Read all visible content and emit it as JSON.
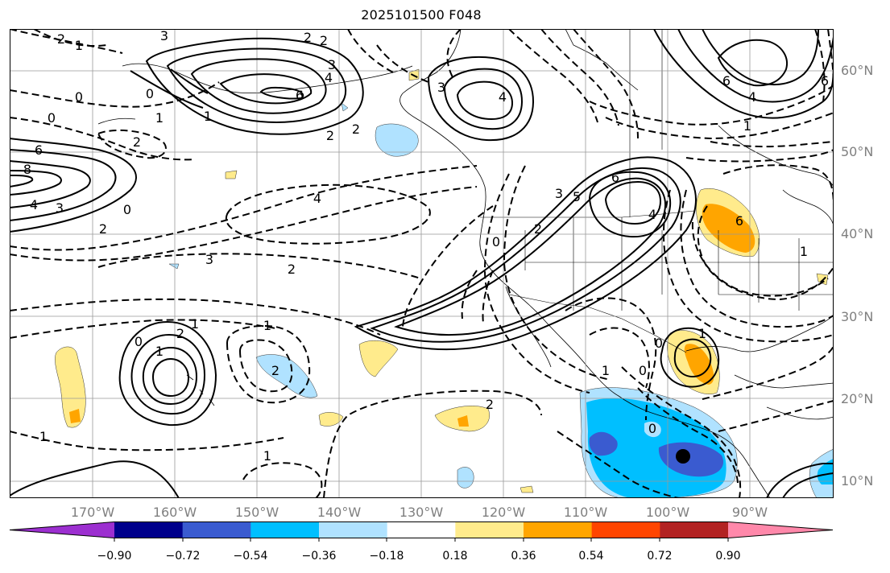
{
  "title": "2025101500 F048",
  "lat_labels": [
    "60°N",
    "50°N",
    "40°N",
    "30°N",
    "20°N",
    "10°N"
  ],
  "lon_labels": [
    "170°W",
    "160°W",
    "150°W",
    "140°W",
    "130°W",
    "120°W",
    "110°W",
    "100°W",
    "90°W"
  ],
  "contour_labels": [
    "2",
    "2",
    "1",
    "3",
    "2",
    "3",
    "6",
    "4",
    "3",
    "4",
    "6",
    "6",
    "4",
    "1",
    "0",
    "0",
    "0",
    "1",
    "2",
    "2",
    "2",
    "6",
    "8",
    "4",
    "3",
    "2",
    "0",
    "4",
    "6",
    "5",
    "3",
    "2",
    "1",
    "0",
    "4",
    "6",
    "1",
    "3",
    "2",
    "1",
    "0",
    "2",
    "1",
    "2",
    "2",
    "1",
    "1",
    "1",
    "0",
    "0",
    "1",
    "0",
    "1"
  ],
  "colorbar": {
    "tick_labels": [
      "−0.90",
      "−0.72",
      "−0.54",
      "−0.36",
      "−0.18",
      "0.18",
      "0.36",
      "0.54",
      "0.72",
      "0.90"
    ],
    "colors": [
      "#9c2fd0",
      "#00008b",
      "#3a5bd0",
      "#00bfff",
      "#b0e2ff",
      "#ffffff",
      "#ffeb8c",
      "#ffa500",
      "#ff4500",
      "#b22222",
      "#ff88aa"
    ]
  }
}
